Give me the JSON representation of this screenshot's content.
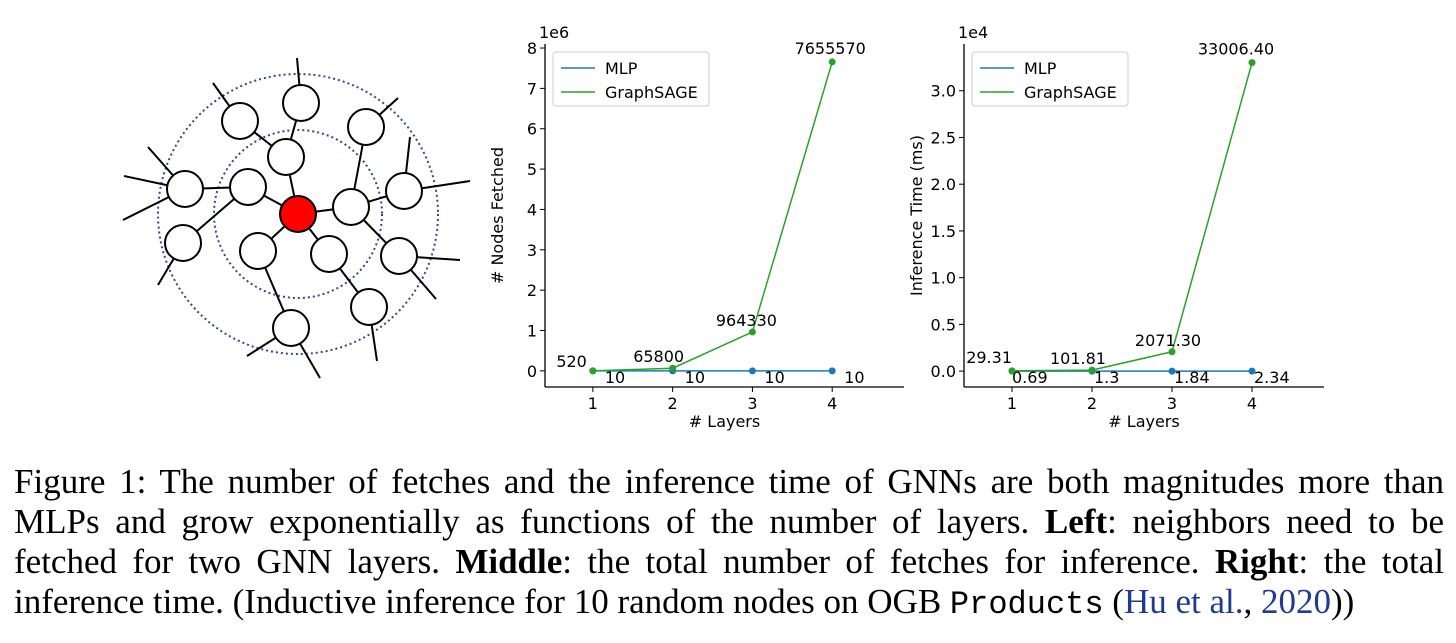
{
  "colors": {
    "mlp": "#1f77b4",
    "graphsage": "#2ca02c",
    "target_node": "#ff0000",
    "hop_circle": "#2e4a87",
    "cite": "#1f3a93"
  },
  "chart_data": [
    {
      "type": "line",
      "id": "nodes-fetched",
      "xlabel": "# Layers",
      "ylabel": "# Nodes Fetched",
      "scale_label": "1e6",
      "x": [
        1,
        2,
        3,
        4
      ],
      "xlim": [
        0.4,
        4.9
      ],
      "ylim": [
        -0.4,
        8.1
      ],
      "yticks": [
        0,
        1,
        2,
        3,
        4,
        5,
        6,
        7,
        8
      ],
      "ytick_labels": [
        "0",
        "1",
        "2",
        "3",
        "4",
        "5",
        "6",
        "7",
        "8"
      ],
      "legend": [
        "MLP",
        "GraphSAGE"
      ],
      "legend_position": "top-left",
      "series": [
        {
          "name": "MLP",
          "values": [
            10,
            10,
            10,
            10
          ],
          "labels": [
            "10",
            "10",
            "10",
            "10"
          ]
        },
        {
          "name": "GraphSAGE",
          "values": [
            520,
            65800,
            964330,
            7655570
          ],
          "labels": [
            "520",
            "65800",
            "964330",
            "7655570"
          ]
        }
      ]
    },
    {
      "type": "line",
      "id": "inference-time",
      "xlabel": "# Layers",
      "ylabel": "Inference Time (ms)",
      "scale_label": "1e4",
      "x": [
        1,
        2,
        3,
        4
      ],
      "xlim": [
        0.4,
        4.9
      ],
      "ylim": [
        -0.17,
        3.5
      ],
      "yticks": [
        0,
        0.5,
        1.0,
        1.5,
        2.0,
        2.5,
        3.0
      ],
      "ytick_labels": [
        "0.0",
        "0.5",
        "1.0",
        "1.5",
        "2.0",
        "2.5",
        "3.0"
      ],
      "legend": [
        "MLP",
        "GraphSAGE"
      ],
      "legend_position": "top-left",
      "series": [
        {
          "name": "MLP",
          "values": [
            0.69,
            1.3,
            1.84,
            2.34
          ],
          "labels": [
            "0.69",
            "1.3",
            "1.84",
            "2.34"
          ]
        },
        {
          "name": "GraphSAGE",
          "values": [
            29.31,
            101.81,
            2071.3,
            33006.4
          ],
          "labels": [
            "29.31",
            "101.81",
            "2071.30",
            "33006.40"
          ]
        }
      ]
    }
  ],
  "caption": {
    "part1": "Figure 1: The number of fetches and the inference time of GNNs are both magnitudes more than MLPs and grow exponentially as functions of the number of layers. ",
    "left_label": "Left",
    "left_text": ": neighbors need to be fetched for two GNN layers. ",
    "middle_label": "Middle",
    "middle_text": ": the total number of fetches for inference. ",
    "right_label": "Right",
    "right_text": ": the total inference time. (Inductive inference for 10 random nodes on OGB ",
    "dataset": "Products",
    "open_paren": " (",
    "cite_author": "Hu et al.",
    "comma": ", ",
    "cite_year": "2020",
    "close": "))"
  }
}
